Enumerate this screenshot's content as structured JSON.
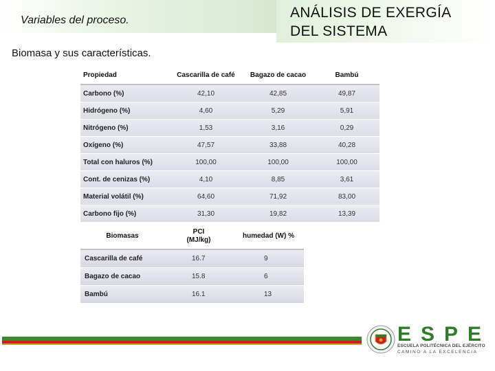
{
  "header": {
    "subtitle": "Variables del proceso.",
    "title_line1": "ANÁLISIS DE EXERGÍA",
    "title_line2": "DEL SISTEMA"
  },
  "section_label": "Biomasa y sus características.",
  "table_properties": {
    "headers": [
      "Propiedad",
      "Cascarilla de café",
      "Bagazo de cacao",
      "Bambú"
    ],
    "rows": [
      [
        "Carbono (%)",
        "42,10",
        "42,85",
        "49,87"
      ],
      [
        "Hidrógeno (%)",
        "4,60",
        "5,29",
        "5,91"
      ],
      [
        "Nitrógeno (%)",
        "1,53",
        "3,16",
        "0,29"
      ],
      [
        "Oxígeno (%)",
        "47,57",
        "33,88",
        "40,28"
      ],
      [
        "Total con haluros (%)",
        "100,00",
        "100,00",
        "100,00"
      ],
      [
        "Cont. de cenizas (%)",
        "4,10",
        "8,85",
        "3,61"
      ],
      [
        "Material volátil (%)",
        "64,60",
        "71,92",
        "83,00"
      ],
      [
        "Carbono fijo (%)",
        "31,30",
        "19,82",
        "13,39"
      ]
    ]
  },
  "table_biomass": {
    "headers": [
      "Biomasas",
      "PCI",
      "(MJ/kg)",
      "humedad (W) %"
    ],
    "rows": [
      [
        "Cascarilla de café",
        "16.7",
        "9"
      ],
      [
        "Bagazo de cacao",
        "15.8",
        "6"
      ],
      [
        "Bambú",
        "16.1",
        "13"
      ]
    ]
  },
  "logo": {
    "icon": "university-seal-icon",
    "letters": "ESPE",
    "line1": "ESCUELA POLITÉCNICA DEL EJÉRCITO",
    "line2": "CAMINO A LA EXCELENCIA",
    "colors": {
      "green": "#2f7d2a",
      "red": "#d41c1c",
      "gold": "#caa63a"
    }
  }
}
